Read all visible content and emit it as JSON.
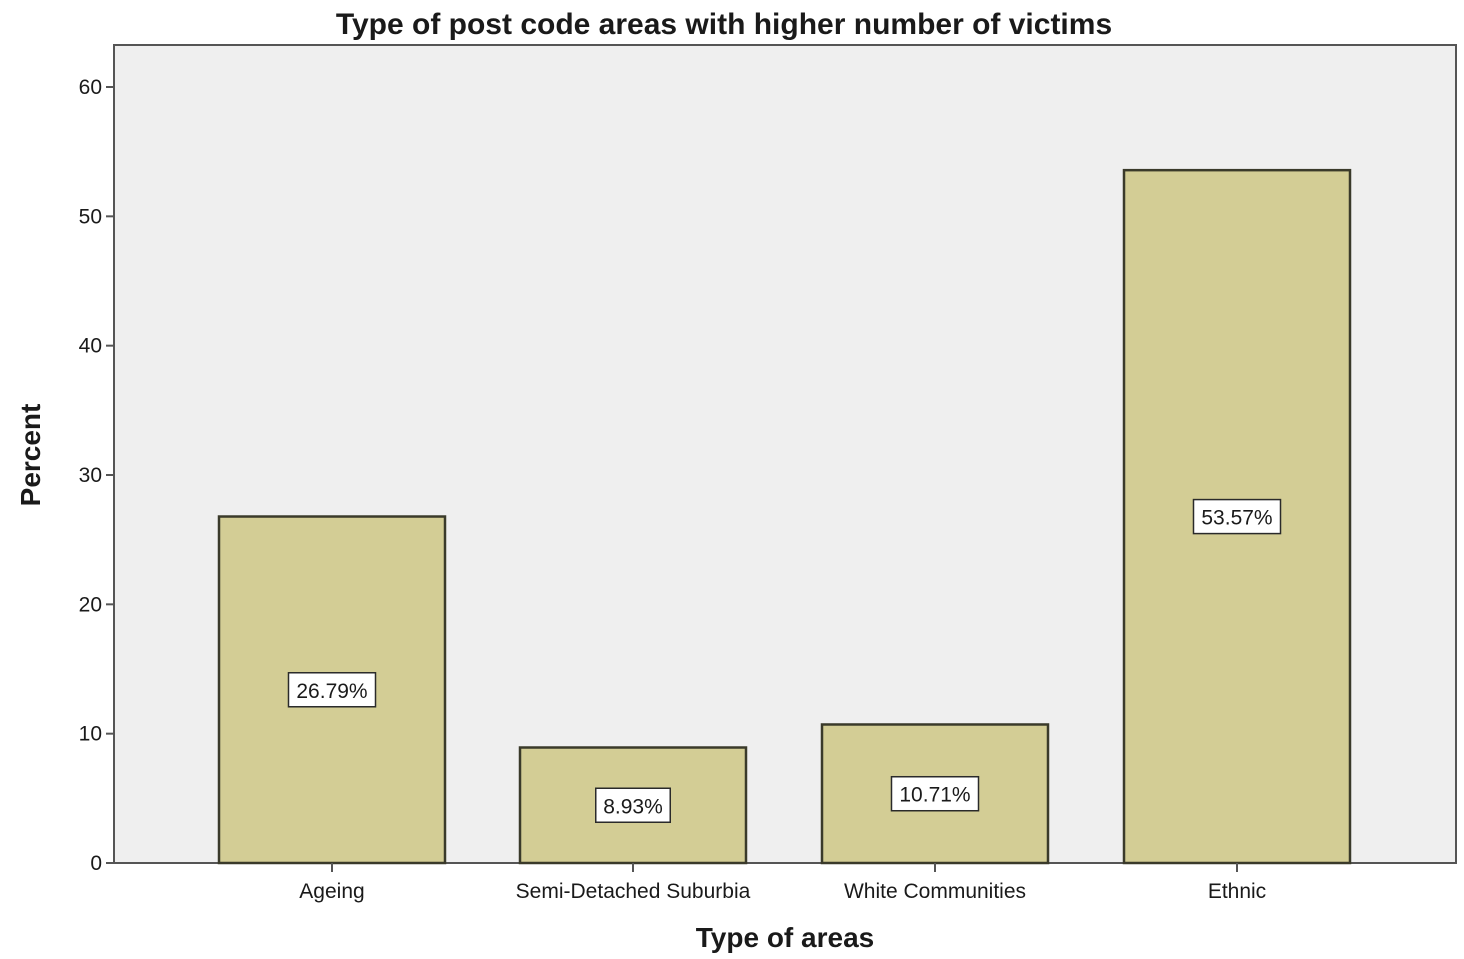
{
  "chart_data": {
    "type": "bar",
    "title": "Type of post code areas with higher number of victims",
    "xlabel": "Type of areas",
    "ylabel": "Percent",
    "categories": [
      "Ageing",
      "Semi-Detached Suburbia",
      "White Communities",
      "Ethnic"
    ],
    "values": [
      26.79,
      8.93,
      10.71,
      53.57
    ],
    "value_labels": [
      "26.79%",
      "8.93%",
      "10.71%",
      "53.57%"
    ],
    "ylim": [
      0,
      63.3
    ],
    "yticks": [
      0,
      10,
      20,
      30,
      40,
      50,
      60
    ],
    "ytick_labels": [
      "0",
      "10",
      "20",
      "30",
      "40",
      "50",
      "60"
    ],
    "grid": false,
    "legend": "none",
    "colors": {
      "bar_fill": "#d3cd95",
      "bar_stroke": "#3a3a2a",
      "plot_background": "#efefef",
      "frame": "#555555",
      "label_box_fill": "#ffffff"
    }
  }
}
